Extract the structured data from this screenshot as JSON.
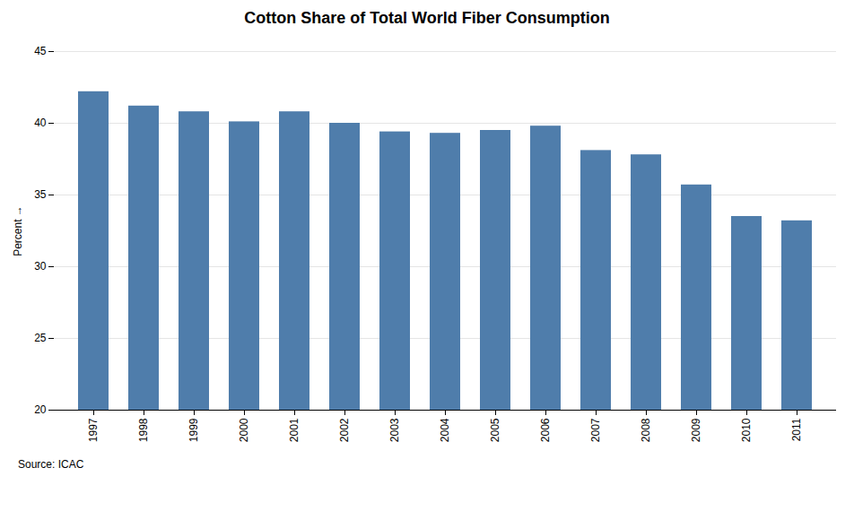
{
  "chart_data": {
    "type": "bar",
    "title": "Cotton Share of Total World Fiber Consumption",
    "ylabel": "Percent",
    "annotations": [
      "Source: ICAC"
    ],
    "categories": [
      "1997",
      "1998",
      "1999",
      "2000",
      "2001",
      "2002",
      "2003",
      "2004",
      "2005",
      "2006",
      "2007",
      "2008",
      "2009",
      "2010",
      "2011"
    ],
    "values": [
      42.2,
      41.2,
      40.8,
      40.1,
      40.8,
      40.0,
      39.4,
      39.3,
      39.5,
      39.8,
      38.1,
      37.8,
      35.7,
      33.5,
      33.2
    ],
    "color": "#4f7dab",
    "ylim": [
      20,
      45
    ],
    "yticks": [
      20,
      25,
      30,
      35,
      40,
      45
    ],
    "grid": true
  }
}
